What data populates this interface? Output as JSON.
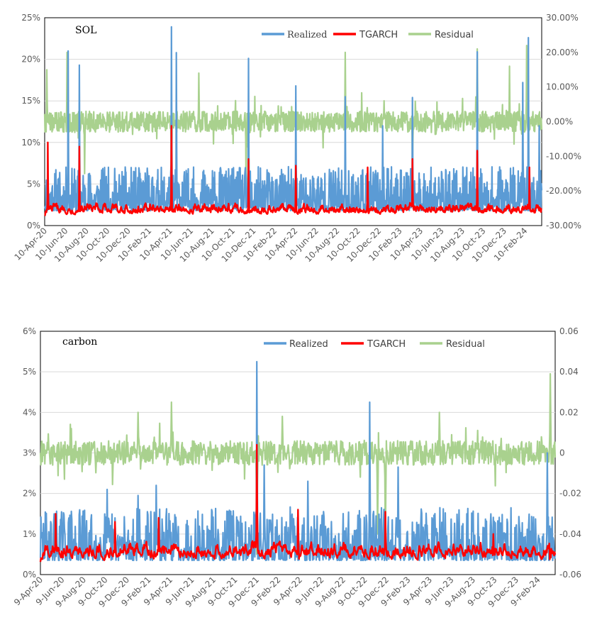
{
  "chart_data": [
    {
      "type": "line",
      "title": "SOL",
      "legend": [
        "Realized",
        "TGARCH",
        "Residual"
      ],
      "x_tick_labels": [
        "10-Apr-20",
        "10-Jun-20",
        "10-Aug-20",
        "10-Oct-20",
        "10-Dec-20",
        "10-Feb-21",
        "10-Apr-21",
        "10-Jun-21",
        "10-Aug-21",
        "10-Oct-21",
        "10-Dec-21",
        "10-Feb-22",
        "10-Apr-22",
        "10-Jun-22",
        "10-Aug-22",
        "10-Oct-22",
        "10-Dec-22",
        "10-Feb-23",
        "10-Apr-23",
        "10-Jun-23",
        "10-Aug-23",
        "10-Oct-23",
        "10-Dec-23",
        "10-Feb-24"
      ],
      "ylim_left": [
        0,
        25
      ],
      "left_tick_labels": [
        "0%",
        "5%",
        "10%",
        "15%",
        "20%",
        "25%"
      ],
      "ylim_right": [
        -30,
        30
      ],
      "right_tick_labels": [
        "-30.00%",
        "-20.00%",
        "-10.00%",
        "0.00%",
        "10.00%",
        "20.00%",
        "30.00%"
      ],
      "series": [
        {
          "name": "Realized",
          "axis": "left",
          "color": "#5B9BD5",
          "baseline": 1.8,
          "noise": 2.2,
          "spikes": [
            [
              0.265,
              20.8
            ],
            [
              0.047,
              21
            ],
            [
              0.07,
              19.3
            ],
            [
              0.255,
              23.9
            ],
            [
              0.41,
              20.1
            ],
            [
              0.505,
              16.8
            ],
            [
              0.605,
              15.5
            ],
            [
              0.68,
              12
            ],
            [
              0.74,
              15.4
            ],
            [
              0.87,
              20.9
            ],
            [
              0.973,
              22.6
            ],
            [
              0.962,
              17.2
            ],
            [
              0.995,
              12
            ]
          ]
        },
        {
          "name": "TGARCH",
          "axis": "left",
          "color": "#FF0000",
          "baseline": 1.2,
          "noise": 1.0,
          "spikes": [
            [
              0.006,
              10
            ],
            [
              0.07,
              9.5
            ],
            [
              0.255,
              12
            ],
            [
              0.41,
              8
            ],
            [
              0.505,
              7.2
            ],
            [
              0.65,
              7
            ],
            [
              0.74,
              8
            ],
            [
              0.87,
              9
            ],
            [
              0.975,
              7
            ]
          ]
        },
        {
          "name": "Residual",
          "axis": "right",
          "color": "#A9D18E",
          "baseline": 0,
          "noise": 3.0,
          "spikes": [
            [
              0.004,
              15
            ],
            [
              0.045,
              20
            ],
            [
              0.255,
              16
            ],
            [
              0.31,
              14
            ],
            [
              0.405,
              -20
            ],
            [
              0.605,
              20
            ],
            [
              0.74,
              -15
            ],
            [
              0.87,
              21
            ],
            [
              0.935,
              16
            ],
            [
              0.97,
              22
            ],
            [
              0.255,
              -25
            ],
            [
              0.08,
              -15
            ]
          ]
        }
      ]
    },
    {
      "type": "line",
      "title": "carbon",
      "legend": [
        "Realized",
        "TGARCH",
        "Residual"
      ],
      "x_tick_labels": [
        "9-Apr-20",
        "9-Jun-20",
        "9-Aug-20",
        "9-Oct-20",
        "9-Dec-20",
        "9-Feb-21",
        "9-Apr-21",
        "9-Jun-21",
        "9-Aug-21",
        "9-Oct-21",
        "9-Dec-21",
        "9-Feb-22",
        "9-Apr-22",
        "9-Jun-22",
        "9-Aug-22",
        "9-Oct-22",
        "9-Dec-22",
        "9-Feb-23",
        "9-Apr-23",
        "9-Jun-23",
        "9-Aug-23",
        "9-Oct-23",
        "9-Dec-23",
        "9-Feb-24"
      ],
      "ylim_left": [
        0,
        6
      ],
      "left_tick_labels": [
        "0%",
        "1%",
        "2%",
        "3%",
        "4%",
        "5%",
        "6%"
      ],
      "ylim_right": [
        -0.06,
        0.06
      ],
      "right_tick_labels": [
        "-0.06",
        "-0.04",
        "-0.02",
        "0",
        "0.02",
        "0.04",
        "0.06"
      ],
      "series": [
        {
          "name": "Realized",
          "axis": "left",
          "color": "#5B9BD5",
          "baseline": 0.35,
          "noise": 0.55,
          "spikes": [
            [
              0.42,
              5.25
            ],
            [
              0.64,
              4.25
            ],
            [
              0.695,
              2.65
            ],
            [
              0.985,
              3.0
            ],
            [
              0.13,
              2.1
            ],
            [
              0.19,
              1.95
            ],
            [
              0.225,
              2.2
            ],
            [
              0.52,
              2.3
            ],
            [
              0.435,
              2.7
            ]
          ]
        },
        {
          "name": "TGARCH",
          "axis": "left",
          "color": "#FF0000",
          "baseline": 0.3,
          "noise": 0.35,
          "spikes": [
            [
              0.42,
              3.2
            ],
            [
              0.5,
              1.6
            ],
            [
              0.67,
              1.55
            ],
            [
              0.03,
              1.5
            ],
            [
              0.145,
              1.3
            ],
            [
              0.23,
              1.4
            ],
            [
              0.88,
              1.0
            ],
            [
              0.99,
              0.6
            ]
          ]
        },
        {
          "name": "Residual",
          "axis": "right",
          "color": "#A9D18E",
          "baseline": 0,
          "noise": 0.006,
          "spikes": [
            [
              0.99,
              0.039
            ],
            [
              0.255,
              0.025
            ],
            [
              0.42,
              -0.05
            ],
            [
              0.67,
              -0.045
            ],
            [
              0.655,
              -0.04
            ],
            [
              0.19,
              0.02
            ],
            [
              0.775,
              0.02
            ],
            [
              0.47,
              0.018
            ]
          ]
        }
      ]
    }
  ]
}
